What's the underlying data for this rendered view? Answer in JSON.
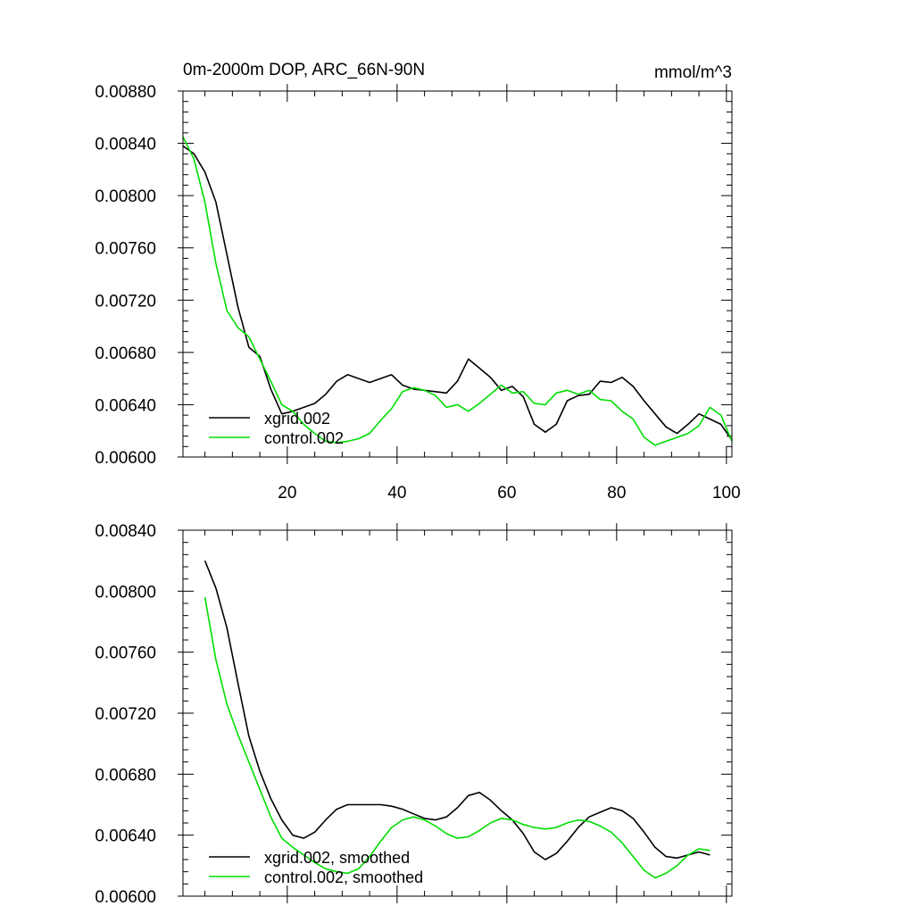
{
  "chart_data": [
    {
      "type": "line",
      "title": "0m-2000m DOP, ARC_66N-90N",
      "units": "mmol/m^3",
      "xlabel": "",
      "ylabel": "",
      "xlim": [
        1,
        101
      ],
      "ylim": [
        0.006,
        0.0088
      ],
      "x_ticks": [
        20,
        40,
        60,
        80,
        100
      ],
      "x_tick_labels": [
        "20",
        "40",
        "60",
        "80",
        "100"
      ],
      "y_ticks": [
        0.006,
        0.0064,
        0.0068,
        0.0072,
        0.0076,
        0.008,
        0.0084,
        0.0088
      ],
      "y_tick_labels": [
        "0.00600",
        "0.00640",
        "0.00680",
        "0.00720",
        "0.00760",
        "0.00800",
        "0.00840",
        "0.00880"
      ],
      "grid": false,
      "legend_position": "bottom-left",
      "series": [
        {
          "name": "xgrid.002",
          "color": "#000000",
          "x": [
            1,
            3,
            5,
            7,
            9,
            11,
            13,
            15,
            17,
            19,
            21,
            23,
            25,
            27,
            29,
            31,
            33,
            35,
            37,
            39,
            41,
            43,
            45,
            47,
            49,
            51,
            53,
            55,
            57,
            59,
            61,
            63,
            65,
            67,
            69,
            71,
            73,
            75,
            77,
            79,
            81,
            83,
            85,
            87,
            89,
            91,
            93,
            95,
            97,
            99,
            101
          ],
          "y": [
            0.00838,
            0.00832,
            0.00818,
            0.00795,
            0.00755,
            0.00715,
            0.00684,
            0.00677,
            0.00652,
            0.00633,
            0.00635,
            0.00638,
            0.00641,
            0.00648,
            0.00658,
            0.00663,
            0.0066,
            0.00657,
            0.0066,
            0.00663,
            0.00655,
            0.00652,
            0.00651,
            0.0065,
            0.00649,
            0.00658,
            0.00675,
            0.00668,
            0.00661,
            0.00651,
            0.00654,
            0.00646,
            0.00625,
            0.00619,
            0.00625,
            0.00643,
            0.00647,
            0.00648,
            0.00658,
            0.00657,
            0.00661,
            0.00654,
            0.00643,
            0.00633,
            0.00623,
            0.00618,
            0.00625,
            0.00633,
            0.00629,
            0.00625,
            0.00613
          ]
        },
        {
          "name": "control.002",
          "color": "#00dd00",
          "x": [
            1,
            3,
            5,
            7,
            9,
            11,
            13,
            15,
            17,
            19,
            21,
            23,
            25,
            27,
            29,
            31,
            33,
            35,
            37,
            39,
            41,
            43,
            45,
            47,
            49,
            51,
            53,
            55,
            57,
            59,
            61,
            63,
            65,
            67,
            69,
            71,
            73,
            75,
            77,
            79,
            81,
            83,
            85,
            87,
            89,
            91,
            93,
            95,
            97,
            99,
            101
          ],
          "y": [
            0.00845,
            0.00828,
            0.00795,
            0.00748,
            0.00712,
            0.00699,
            0.00692,
            0.00675,
            0.00658,
            0.0064,
            0.00635,
            0.00625,
            0.00618,
            0.00612,
            0.00611,
            0.00612,
            0.00614,
            0.00618,
            0.00628,
            0.00637,
            0.0065,
            0.00653,
            0.00651,
            0.00647,
            0.00638,
            0.0064,
            0.00635,
            0.00641,
            0.00648,
            0.00655,
            0.00649,
            0.0065,
            0.00641,
            0.0064,
            0.00649,
            0.00651,
            0.00648,
            0.00651,
            0.00644,
            0.00643,
            0.00635,
            0.00629,
            0.00615,
            0.00609,
            0.00612,
            0.00615,
            0.00618,
            0.00624,
            0.00638,
            0.00632,
            0.00612
          ]
        }
      ]
    },
    {
      "type": "line",
      "title": "",
      "xlabel": "",
      "ylabel": "",
      "xlim": [
        1,
        101
      ],
      "ylim": [
        0.006,
        0.0084
      ],
      "x_ticks": [
        20,
        40,
        60,
        80,
        100
      ],
      "y_ticks": [
        0.006,
        0.0064,
        0.0068,
        0.0072,
        0.0076,
        0.008,
        0.0084
      ],
      "y_tick_labels": [
        "0.00600",
        "0.00640",
        "0.00680",
        "0.00720",
        "0.00760",
        "0.00800",
        "0.00840"
      ],
      "grid": false,
      "legend_position": "bottom-left",
      "series": [
        {
          "name": "xgrid.002, smoothed",
          "color": "#000000",
          "x": [
            5,
            7,
            9,
            11,
            13,
            15,
            17,
            19,
            21,
            23,
            25,
            27,
            29,
            31,
            33,
            35,
            37,
            39,
            41,
            43,
            45,
            47,
            49,
            51,
            53,
            55,
            57,
            59,
            61,
            63,
            65,
            67,
            69,
            71,
            73,
            75,
            77,
            79,
            81,
            83,
            85,
            87,
            89,
            91,
            93,
            95,
            97
          ],
          "y": [
            0.0082,
            0.00802,
            0.00776,
            0.0074,
            0.00705,
            0.00682,
            0.00664,
            0.0065,
            0.0064,
            0.00638,
            0.00642,
            0.0065,
            0.00657,
            0.0066,
            0.0066,
            0.0066,
            0.0066,
            0.00659,
            0.00657,
            0.00654,
            0.00651,
            0.0065,
            0.00652,
            0.00658,
            0.00666,
            0.00668,
            0.00663,
            0.00656,
            0.0065,
            0.00641,
            0.00629,
            0.00624,
            0.00628,
            0.00636,
            0.00645,
            0.00652,
            0.00655,
            0.00658,
            0.00656,
            0.00651,
            0.00642,
            0.00632,
            0.00626,
            0.00625,
            0.00627,
            0.00629,
            0.00627
          ]
        },
        {
          "name": "control.002, smoothed",
          "color": "#00dd00",
          "x": [
            5,
            7,
            9,
            11,
            13,
            15,
            17,
            19,
            21,
            23,
            25,
            27,
            29,
            31,
            33,
            35,
            37,
            39,
            41,
            43,
            45,
            47,
            49,
            51,
            53,
            55,
            57,
            59,
            61,
            63,
            65,
            67,
            69,
            71,
            73,
            75,
            77,
            79,
            81,
            83,
            85,
            87,
            89,
            91,
            93,
            95,
            97
          ],
          "y": [
            0.00796,
            0.00755,
            0.00726,
            0.00706,
            0.00688,
            0.0067,
            0.00652,
            0.00638,
            0.00632,
            0.00627,
            0.00622,
            0.00618,
            0.00616,
            0.00615,
            0.00618,
            0.00626,
            0.00636,
            0.00645,
            0.0065,
            0.00652,
            0.0065,
            0.00646,
            0.00641,
            0.00638,
            0.00639,
            0.00643,
            0.00648,
            0.00651,
            0.0065,
            0.00647,
            0.00645,
            0.00644,
            0.00645,
            0.00648,
            0.0065,
            0.00649,
            0.00646,
            0.00642,
            0.00635,
            0.00626,
            0.00617,
            0.00612,
            0.00615,
            0.0062,
            0.00627,
            0.00631,
            0.0063
          ]
        }
      ]
    }
  ]
}
